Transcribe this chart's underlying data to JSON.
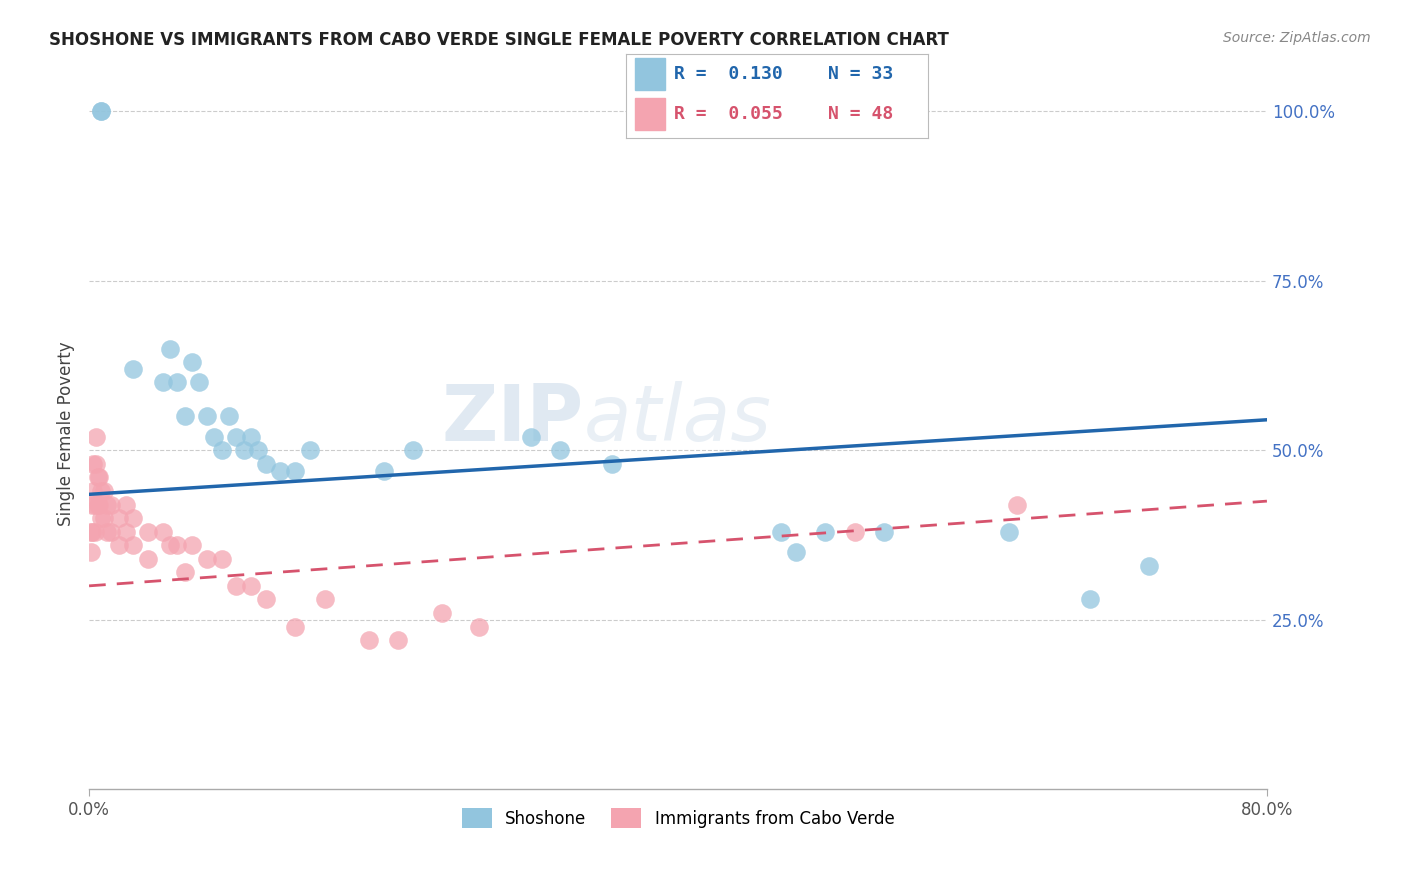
{
  "title": "SHOSHONE VS IMMIGRANTS FROM CABO VERDE SINGLE FEMALE POVERTY CORRELATION CHART",
  "source": "Source: ZipAtlas.com",
  "ylabel": "Single Female Poverty",
  "right_yticks": [
    "25.0%",
    "50.0%",
    "75.0%",
    "100.0%"
  ],
  "right_ytick_vals": [
    0.25,
    0.5,
    0.75,
    1.0
  ],
  "legend_blue_r": "R =  0.130",
  "legend_blue_n": "N = 33",
  "legend_pink_r": "R =  0.055",
  "legend_pink_n": "N = 48",
  "blue_color": "#92C5DE",
  "pink_color": "#F4A4B0",
  "blue_line_color": "#2166AC",
  "pink_line_color": "#D6536D",
  "watermark_zip": "ZIP",
  "watermark_atlas": "atlas",
  "shoshone_x": [
    0.008,
    0.008,
    0.03,
    0.05,
    0.055,
    0.06,
    0.065,
    0.07,
    0.075,
    0.08,
    0.085,
    0.09,
    0.095,
    0.1,
    0.105,
    0.11,
    0.115,
    0.12,
    0.13,
    0.14,
    0.15,
    0.2,
    0.22,
    0.3,
    0.32,
    0.355,
    0.47,
    0.48,
    0.5,
    0.54,
    0.625,
    0.68,
    0.72
  ],
  "shoshone_y": [
    1.0,
    1.0,
    0.62,
    0.6,
    0.65,
    0.6,
    0.55,
    0.63,
    0.6,
    0.55,
    0.52,
    0.5,
    0.55,
    0.52,
    0.5,
    0.52,
    0.5,
    0.48,
    0.47,
    0.47,
    0.5,
    0.47,
    0.5,
    0.52,
    0.5,
    0.48,
    0.38,
    0.35,
    0.38,
    0.38,
    0.38,
    0.28,
    0.33
  ],
  "caboverde_x": [
    0.001,
    0.001,
    0.002,
    0.002,
    0.003,
    0.003,
    0.004,
    0.004,
    0.005,
    0.005,
    0.006,
    0.006,
    0.007,
    0.007,
    0.008,
    0.008,
    0.01,
    0.01,
    0.012,
    0.012,
    0.015,
    0.015,
    0.02,
    0.02,
    0.025,
    0.025,
    0.03,
    0.03,
    0.04,
    0.04,
    0.05,
    0.055,
    0.06,
    0.065,
    0.07,
    0.08,
    0.09,
    0.1,
    0.11,
    0.12,
    0.14,
    0.16,
    0.19,
    0.21,
    0.24,
    0.265,
    0.52,
    0.63
  ],
  "caboverde_y": [
    0.38,
    0.35,
    0.42,
    0.38,
    0.48,
    0.44,
    0.42,
    0.38,
    0.52,
    0.48,
    0.46,
    0.42,
    0.46,
    0.42,
    0.44,
    0.4,
    0.44,
    0.4,
    0.42,
    0.38,
    0.42,
    0.38,
    0.4,
    0.36,
    0.42,
    0.38,
    0.4,
    0.36,
    0.38,
    0.34,
    0.38,
    0.36,
    0.36,
    0.32,
    0.36,
    0.34,
    0.34,
    0.3,
    0.3,
    0.28,
    0.24,
    0.28,
    0.22,
    0.22,
    0.26,
    0.24,
    0.38,
    0.42
  ],
  "xlim": [
    0.0,
    0.8
  ],
  "ylim": [
    0.0,
    1.05
  ],
  "blue_line_x": [
    0.0,
    0.8
  ],
  "blue_line_y": [
    0.435,
    0.545
  ],
  "pink_line_x": [
    0.0,
    0.8
  ],
  "pink_line_y": [
    0.3,
    0.425
  ]
}
